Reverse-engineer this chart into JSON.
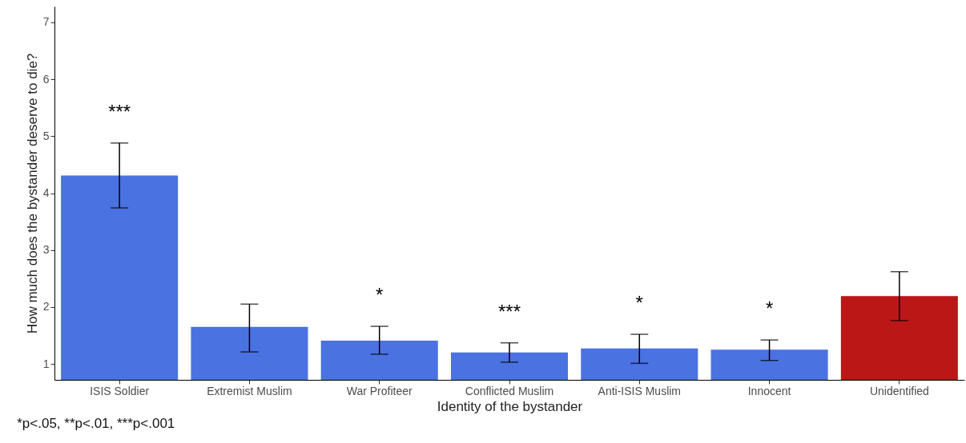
{
  "chart_data": {
    "type": "bar",
    "xlabel": "Identity of the bystander",
    "ylabel": "How much does the bystander deserve to die?",
    "categories": [
      "ISIS Soldier",
      "Extremist Muslim",
      "War Profiteer",
      "Conflicted Muslim",
      "Anti-ISIS Muslim",
      "Innocent",
      "Unidentified"
    ],
    "values": [
      4.31,
      1.65,
      1.41,
      1.2,
      1.27,
      1.25,
      2.19
    ],
    "colors": [
      "#4a72e0",
      "#4a72e0",
      "#4a72e0",
      "#4a72e0",
      "#4a72e0",
      "#4a72e0",
      "#bb1717"
    ],
    "errors": [
      [
        3.74,
        4.88
      ],
      [
        1.21,
        2.05
      ],
      [
        1.17,
        1.66
      ],
      [
        1.03,
        1.37
      ],
      [
        1.01,
        1.52
      ],
      [
        1.06,
        1.42
      ],
      [
        1.76,
        2.62
      ]
    ],
    "value_labels": [
      "***",
      null,
      "*",
      "***",
      "*",
      "*",
      null
    ],
    "ylim": [
      0.72,
      7.28
    ],
    "yticks": [
      1,
      2,
      3,
      4,
      5,
      6,
      7
    ],
    "grid": false,
    "annotations": [
      "*p<.05, **p<.01, ***p<.001"
    ]
  }
}
